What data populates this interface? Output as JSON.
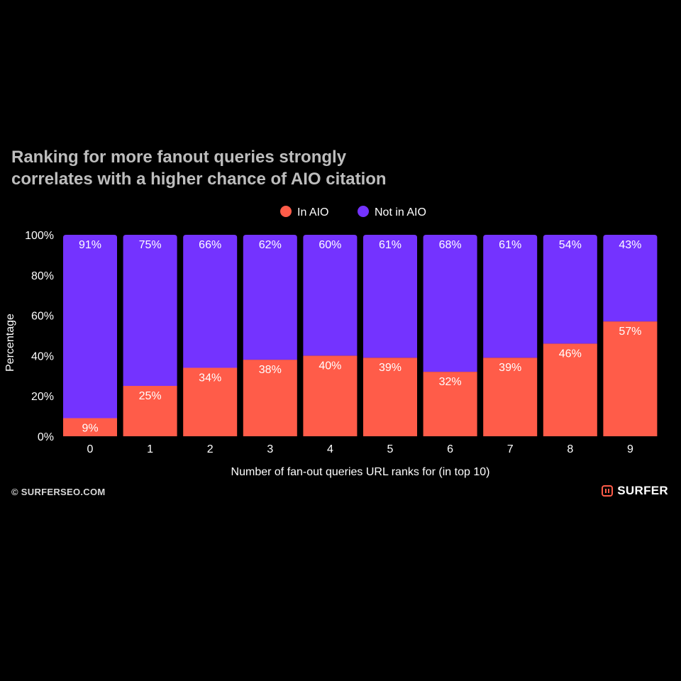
{
  "title_lines": [
    "Ranking for more fanout queries strongly",
    "correlates with a higher chance of AIO citation"
  ],
  "footer": {
    "copyright": "© SURFERSEO.COM",
    "brand": "SURFER"
  },
  "colors": {
    "in_aio": "#ff5c49",
    "not_in_aio": "#7433ff",
    "background": "#000000",
    "brand_accent": "#ff5c49"
  },
  "chart_data": {
    "type": "bar",
    "stacked": true,
    "categories": [
      "0",
      "1",
      "2",
      "3",
      "4",
      "5",
      "6",
      "7",
      "8",
      "9"
    ],
    "series": [
      {
        "name": "In AIO",
        "values": [
          9,
          25,
          34,
          38,
          40,
          39,
          32,
          39,
          46,
          57
        ],
        "labels": [
          "9%",
          "25%",
          "34%",
          "38%",
          "40%",
          "39%",
          "32%",
          "39%",
          "46%",
          "57%"
        ]
      },
      {
        "name": "Not in AIO",
        "values": [
          91,
          75,
          66,
          62,
          60,
          61,
          68,
          61,
          54,
          43
        ],
        "labels": [
          "91%",
          "75%",
          "66%",
          "62%",
          "60%",
          "61%",
          "68%",
          "61%",
          "54%",
          "43%"
        ]
      }
    ],
    "xlabel": "Number of fan-out queries URL ranks for (in top 10)",
    "ylabel": "Percentage",
    "ylim": [
      0,
      100
    ],
    "yticks": [
      "0%",
      "20%",
      "40%",
      "60%",
      "80%",
      "100%"
    ],
    "legend_position": "top-center",
    "grid": false
  }
}
